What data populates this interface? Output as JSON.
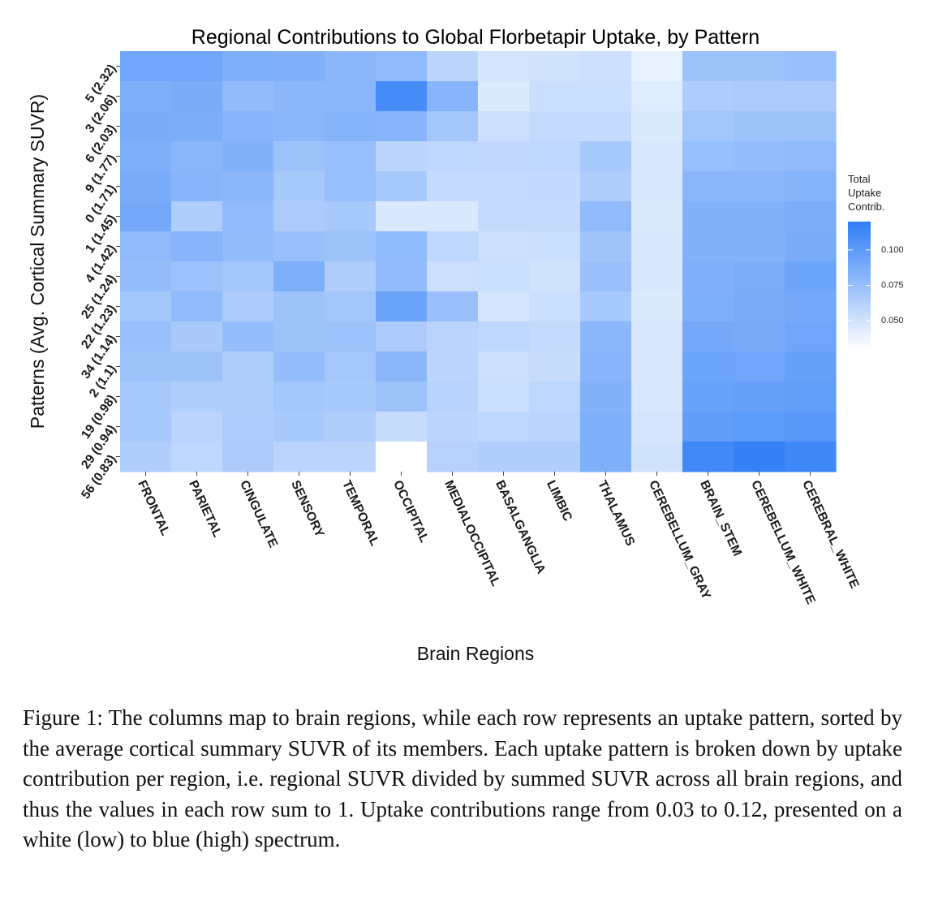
{
  "chart_data": {
    "type": "heatmap",
    "title": "Regional Contributions to Global Florbetapir Uptake, by Pattern",
    "xlabel": "Brain Regions",
    "ylabel": "Patterns (Avg. Cortical Summary SUVR)",
    "x_categories": [
      "FRONTAL",
      "PARIETAL",
      "CINGULATE",
      "SENSORY",
      "TEMPORAL",
      "OCCIPITAL",
      "MEDIALOCCIPITAL",
      "BASALGANGLIA",
      "LIMBIC",
      "THALAMUS",
      "CEREBELLUM_GRAY",
      "BRAIN_STEM",
      "CEREBELLUM_WHITE",
      "CEREBRAL_WHITE"
    ],
    "y_categories": [
      "5 (2.32)",
      "3 (2.06)",
      "6 (2.03)",
      "9 (1.77)",
      "0 (1.71)",
      "1 (1.45)",
      "4 (1.42)",
      "25 (1.24)",
      "22 (1.23)",
      "34 (1.14)",
      "2 (1.1)",
      "19 (0.98)",
      "29 (0.94)",
      "56 (0.83)"
    ],
    "values": [
      [
        0.092,
        0.092,
        0.086,
        0.085,
        0.08,
        0.078,
        0.06,
        0.048,
        0.05,
        0.052,
        0.04,
        0.072,
        0.072,
        0.074
      ],
      [
        0.086,
        0.088,
        0.077,
        0.08,
        0.08,
        0.11,
        0.082,
        0.045,
        0.053,
        0.053,
        0.044,
        0.065,
        0.066,
        0.066
      ],
      [
        0.088,
        0.087,
        0.082,
        0.08,
        0.083,
        0.082,
        0.07,
        0.052,
        0.055,
        0.055,
        0.045,
        0.07,
        0.072,
        0.072
      ],
      [
        0.086,
        0.081,
        0.084,
        0.072,
        0.075,
        0.06,
        0.058,
        0.057,
        0.058,
        0.068,
        0.047,
        0.075,
        0.076,
        0.078
      ],
      [
        0.088,
        0.082,
        0.08,
        0.068,
        0.075,
        0.068,
        0.055,
        0.055,
        0.056,
        0.064,
        0.047,
        0.08,
        0.08,
        0.083
      ],
      [
        0.09,
        0.064,
        0.078,
        0.066,
        0.068,
        0.046,
        0.046,
        0.055,
        0.055,
        0.078,
        0.045,
        0.084,
        0.084,
        0.087
      ],
      [
        0.078,
        0.082,
        0.077,
        0.074,
        0.072,
        0.079,
        0.058,
        0.052,
        0.053,
        0.071,
        0.046,
        0.084,
        0.084,
        0.088
      ],
      [
        0.076,
        0.073,
        0.07,
        0.086,
        0.064,
        0.078,
        0.052,
        0.053,
        0.05,
        0.074,
        0.047,
        0.085,
        0.087,
        0.093
      ],
      [
        0.07,
        0.078,
        0.066,
        0.072,
        0.07,
        0.094,
        0.074,
        0.048,
        0.053,
        0.068,
        0.045,
        0.086,
        0.088,
        0.09
      ],
      [
        0.074,
        0.067,
        0.076,
        0.072,
        0.073,
        0.066,
        0.06,
        0.058,
        0.055,
        0.08,
        0.047,
        0.09,
        0.089,
        0.092
      ],
      [
        0.072,
        0.072,
        0.064,
        0.076,
        0.069,
        0.08,
        0.06,
        0.052,
        0.054,
        0.082,
        0.047,
        0.093,
        0.092,
        0.096
      ],
      [
        0.068,
        0.064,
        0.064,
        0.07,
        0.068,
        0.072,
        0.061,
        0.053,
        0.058,
        0.084,
        0.047,
        0.095,
        0.096,
        0.098
      ],
      [
        0.068,
        0.06,
        0.065,
        0.068,
        0.064,
        0.054,
        0.06,
        0.058,
        0.06,
        0.086,
        0.048,
        0.099,
        0.1,
        0.102
      ],
      [
        0.064,
        0.058,
        0.066,
        0.06,
        0.06,
        0.03,
        0.062,
        0.064,
        0.064,
        0.086,
        0.05,
        0.112,
        0.118,
        0.114
      ]
    ],
    "color_low": "#ffffff",
    "color_high": "#2f7ef6",
    "value_range": [
      0.03,
      0.12
    ],
    "legend": {
      "title_lines": [
        "Total",
        "Uptake",
        "Contrib."
      ],
      "ticks": [
        0.1,
        0.075,
        0.05
      ],
      "tick_labels": [
        "0.100",
        "0.075",
        "0.050"
      ],
      "placement": "right"
    }
  },
  "caption": "Figure 1:  The columns map to brain regions, while each row represents an uptake pattern, sorted by the average cortical summary SUVR of its members. Each uptake pattern is broken down by uptake contribution per region, i.e. regional SUVR divided by summed SUVR across all brain regions, and thus the values in each row sum to 1. Uptake contributions range from 0.03 to 0.12, presented on a white (low) to blue (high) spectrum."
}
